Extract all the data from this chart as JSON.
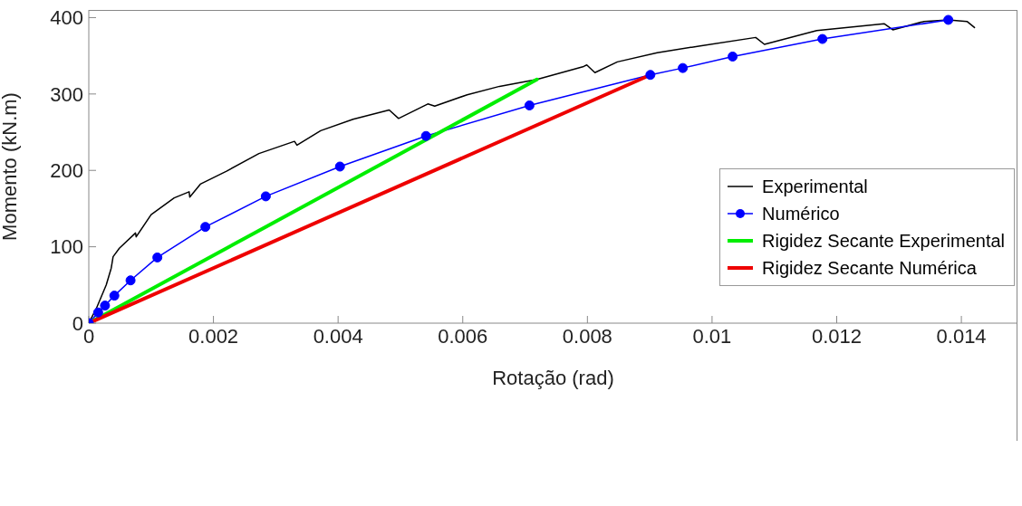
{
  "chart_data": {
    "type": "line",
    "xlabel": "Rotação (rad)",
    "ylabel": "Momento (kN.m)",
    "xlim": [
      0,
      0.0149
    ],
    "xticks": [
      0,
      0.002,
      0.004,
      0.006,
      0.008,
      0.01,
      0.012,
      0.014
    ],
    "ylim": [
      0,
      410
    ],
    "yticks": [
      0,
      100,
      200,
      300,
      400
    ],
    "legend": "right",
    "series": [
      {
        "name": "Experimental",
        "color": "#000000",
        "x": [
          0,
          0.00012,
          0.00028,
          0.00036,
          0.00039,
          0.00049,
          0.00075,
          0.00076,
          0.001,
          0.00137,
          0.00161,
          0.00162,
          0.00179,
          0.00221,
          0.00273,
          0.0033,
          0.00334,
          0.00372,
          0.00424,
          0.00482,
          0.00497,
          0.00544,
          0.00555,
          0.00607,
          0.00659,
          0.00719,
          0.00794,
          0.00799,
          0.00812,
          0.00848,
          0.00912,
          0.00981,
          0.0107,
          0.01084,
          0.01168,
          0.01276,
          0.0129,
          0.0134,
          0.01379,
          0.01409,
          0.01421
        ],
        "values": [
          0,
          19,
          50,
          72,
          87,
          98,
          118,
          113,
          142,
          164,
          172,
          165,
          182,
          199,
          222,
          238,
          233,
          252,
          267,
          279,
          268,
          287,
          284,
          299,
          310,
          319,
          336,
          338,
          328,
          342,
          354,
          363,
          374,
          365,
          383,
          392,
          384,
          395,
          397,
          395,
          387
        ]
      },
      {
        "name": "Numérico",
        "color": "#0000ff",
        "marker": "circle",
        "x": [
          0,
          0.00015,
          0.00026,
          0.00041,
          0.00067,
          0.0011,
          0.00187,
          0.00284,
          0.00403,
          0.00541,
          0.00707,
          0.00901,
          0.00953,
          0.01033,
          0.01177,
          0.01379
        ],
        "values": [
          0,
          14,
          23,
          36,
          56,
          86,
          126,
          166,
          205,
          245,
          285,
          325,
          334,
          349,
          372,
          397
        ]
      },
      {
        "name": "Rigidez Secante Experimental",
        "color": "#00ee00",
        "x": [
          0,
          0.00719
        ],
        "values": [
          0,
          319
        ]
      },
      {
        "name": "Rigidez Secante Numérica",
        "color": "#ee0000",
        "x": [
          0,
          0.00901
        ],
        "values": [
          0,
          325
        ]
      }
    ]
  }
}
